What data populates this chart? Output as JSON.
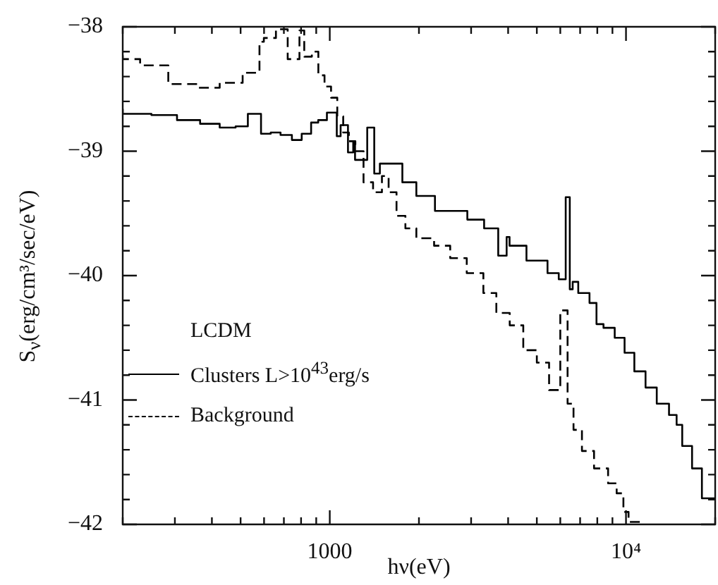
{
  "chart_data": {
    "type": "step",
    "xlabel": "hν(eV)",
    "ylabel": "S$_{ν}$(erg/cm³/sec/eV)",
    "legend_title": "LCDM",
    "legend": "bottom left",
    "log": "x",
    "xlim": [
      200,
      20000
    ],
    "ylim": [
      -42,
      -38
    ],
    "xticks": [
      {
        "value": 200,
        "label": null
      },
      {
        "value": 300,
        "label": null
      },
      {
        "value": 400,
        "label": null
      },
      {
        "value": 500,
        "label": null
      },
      {
        "value": 600,
        "label": null
      },
      {
        "value": 700,
        "label": null
      },
      {
        "value": 800,
        "label": null
      },
      {
        "value": 900,
        "label": null
      },
      1000,
      {
        "value": 2000,
        "label": null
      },
      {
        "value": 3000,
        "label": null
      },
      {
        "value": 4000,
        "label": null
      },
      {
        "value": 5000,
        "label": null
      },
      {
        "value": 6000,
        "label": null
      },
      {
        "value": 7000,
        "label": null
      },
      {
        "value": 8000,
        "label": null
      },
      {
        "value": 9000,
        "label": null
      },
      {
        "value": 10000,
        "label": "10⁴"
      },
      {
        "value": 20000,
        "label": null
      }
    ],
    "yticks": [
      -42,
      {
        "value": -41.8,
        "label": null
      },
      {
        "value": -41.6,
        "label": null
      },
      {
        "value": -41.4,
        "label": null
      },
      {
        "value": -41.2,
        "label": null
      },
      -41,
      {
        "value": -40.8,
        "label": null
      },
      {
        "value": -40.6,
        "label": null
      },
      {
        "value": -40.4,
        "label": null
      },
      {
        "value": -40.2,
        "label": null
      },
      -40,
      {
        "value": -39.8,
        "label": null
      },
      {
        "value": -39.6,
        "label": null
      },
      {
        "value": -39.4,
        "label": null
      },
      {
        "value": -39.2,
        "label": null
      },
      -39,
      {
        "value": -38.8,
        "label": null
      },
      {
        "value": -38.6,
        "label": null
      },
      {
        "value": -38.4,
        "label": null
      },
      {
        "value": -38.2,
        "label": null
      },
      -38
    ],
    "grid": false,
    "series": [
      {
        "name": "Clusters L>10$^{43}$erg/s",
        "color": "#000000",
        "line_style": "solid",
        "x": [
          200,
          250,
          305,
          365,
          425,
          481,
          529,
          586,
          632,
          682,
          745,
          804,
          865,
          914,
          978,
          1056,
          1088,
          1152,
          1200,
          1217,
          1338,
          1413,
          1476,
          1599,
          1758,
          1960,
          2265,
          2913,
          3319,
          3704,
          3954,
          4045,
          4613,
          5433,
          5929,
          6258,
          6460,
          6607,
          6899,
          7530,
          7950,
          8395,
          9160,
          9890,
          10670,
          11640,
          12700,
          13970,
          14820,
          15480,
          16710,
          18040,
          19680,
          20000
        ],
        "values": [
          -38.66,
          -38.7,
          -38.71,
          -38.75,
          -38.78,
          -38.81,
          -38.8,
          -38.7,
          -38.86,
          -38.85,
          -38.87,
          -38.91,
          -38.86,
          -38.77,
          -38.75,
          -38.69,
          -38.88,
          -38.79,
          -39.01,
          -38.93,
          -39.07,
          -38.81,
          -39.18,
          -39.1,
          -39.1,
          -39.25,
          -39.36,
          -39.48,
          -39.55,
          -39.62,
          -39.84,
          -39.69,
          -39.76,
          -39.88,
          -39.98,
          -40.03,
          -39.37,
          -40.11,
          -40.05,
          -40.14,
          -40.22,
          -40.39,
          -40.42,
          -40.5,
          -40.62,
          -40.77,
          -40.9,
          -41.03,
          -41.12,
          -41.2,
          -41.37,
          -41.55,
          -41.79,
          -41.79
        ]
      },
      {
        "name": "Background",
        "color": "#000000",
        "line_style": "dashed",
        "x": [
          200,
          229,
          285,
          361,
          425,
          508,
          579,
          599,
          658,
          721,
          790,
          820,
          870,
          915,
          960,
          1010,
          1060,
          1110,
          1160,
          1220,
          1300,
          1400,
          1500,
          1580,
          1680,
          1800,
          1960,
          2250,
          2550,
          2900,
          3300,
          3650,
          4050,
          4500,
          5000,
          5500,
          6000,
          6350,
          6650,
          7100,
          7800,
          8700,
          9300,
          9800,
          10200,
          10800,
          11300
        ],
        "values": [
          -38.23,
          -38.26,
          -38.31,
          -38.46,
          -38.49,
          -38.45,
          -38.37,
          -38.12,
          -38.09,
          -38.02,
          -38.26,
          -38.03,
          -38.24,
          -38.2,
          -38.39,
          -38.48,
          -38.57,
          -38.72,
          -38.85,
          -38.92,
          -39.0,
          -39.25,
          -39.33,
          -39.2,
          -39.33,
          -39.52,
          -39.62,
          -39.7,
          -39.76,
          -39.86,
          -39.98,
          -40.14,
          -40.3,
          -40.4,
          -40.6,
          -40.7,
          -40.92,
          -40.28,
          -41.03,
          -41.24,
          -41.41,
          -41.55,
          -41.67,
          -41.75,
          -41.9,
          -41.98,
          -41.98
        ]
      }
    ]
  }
}
